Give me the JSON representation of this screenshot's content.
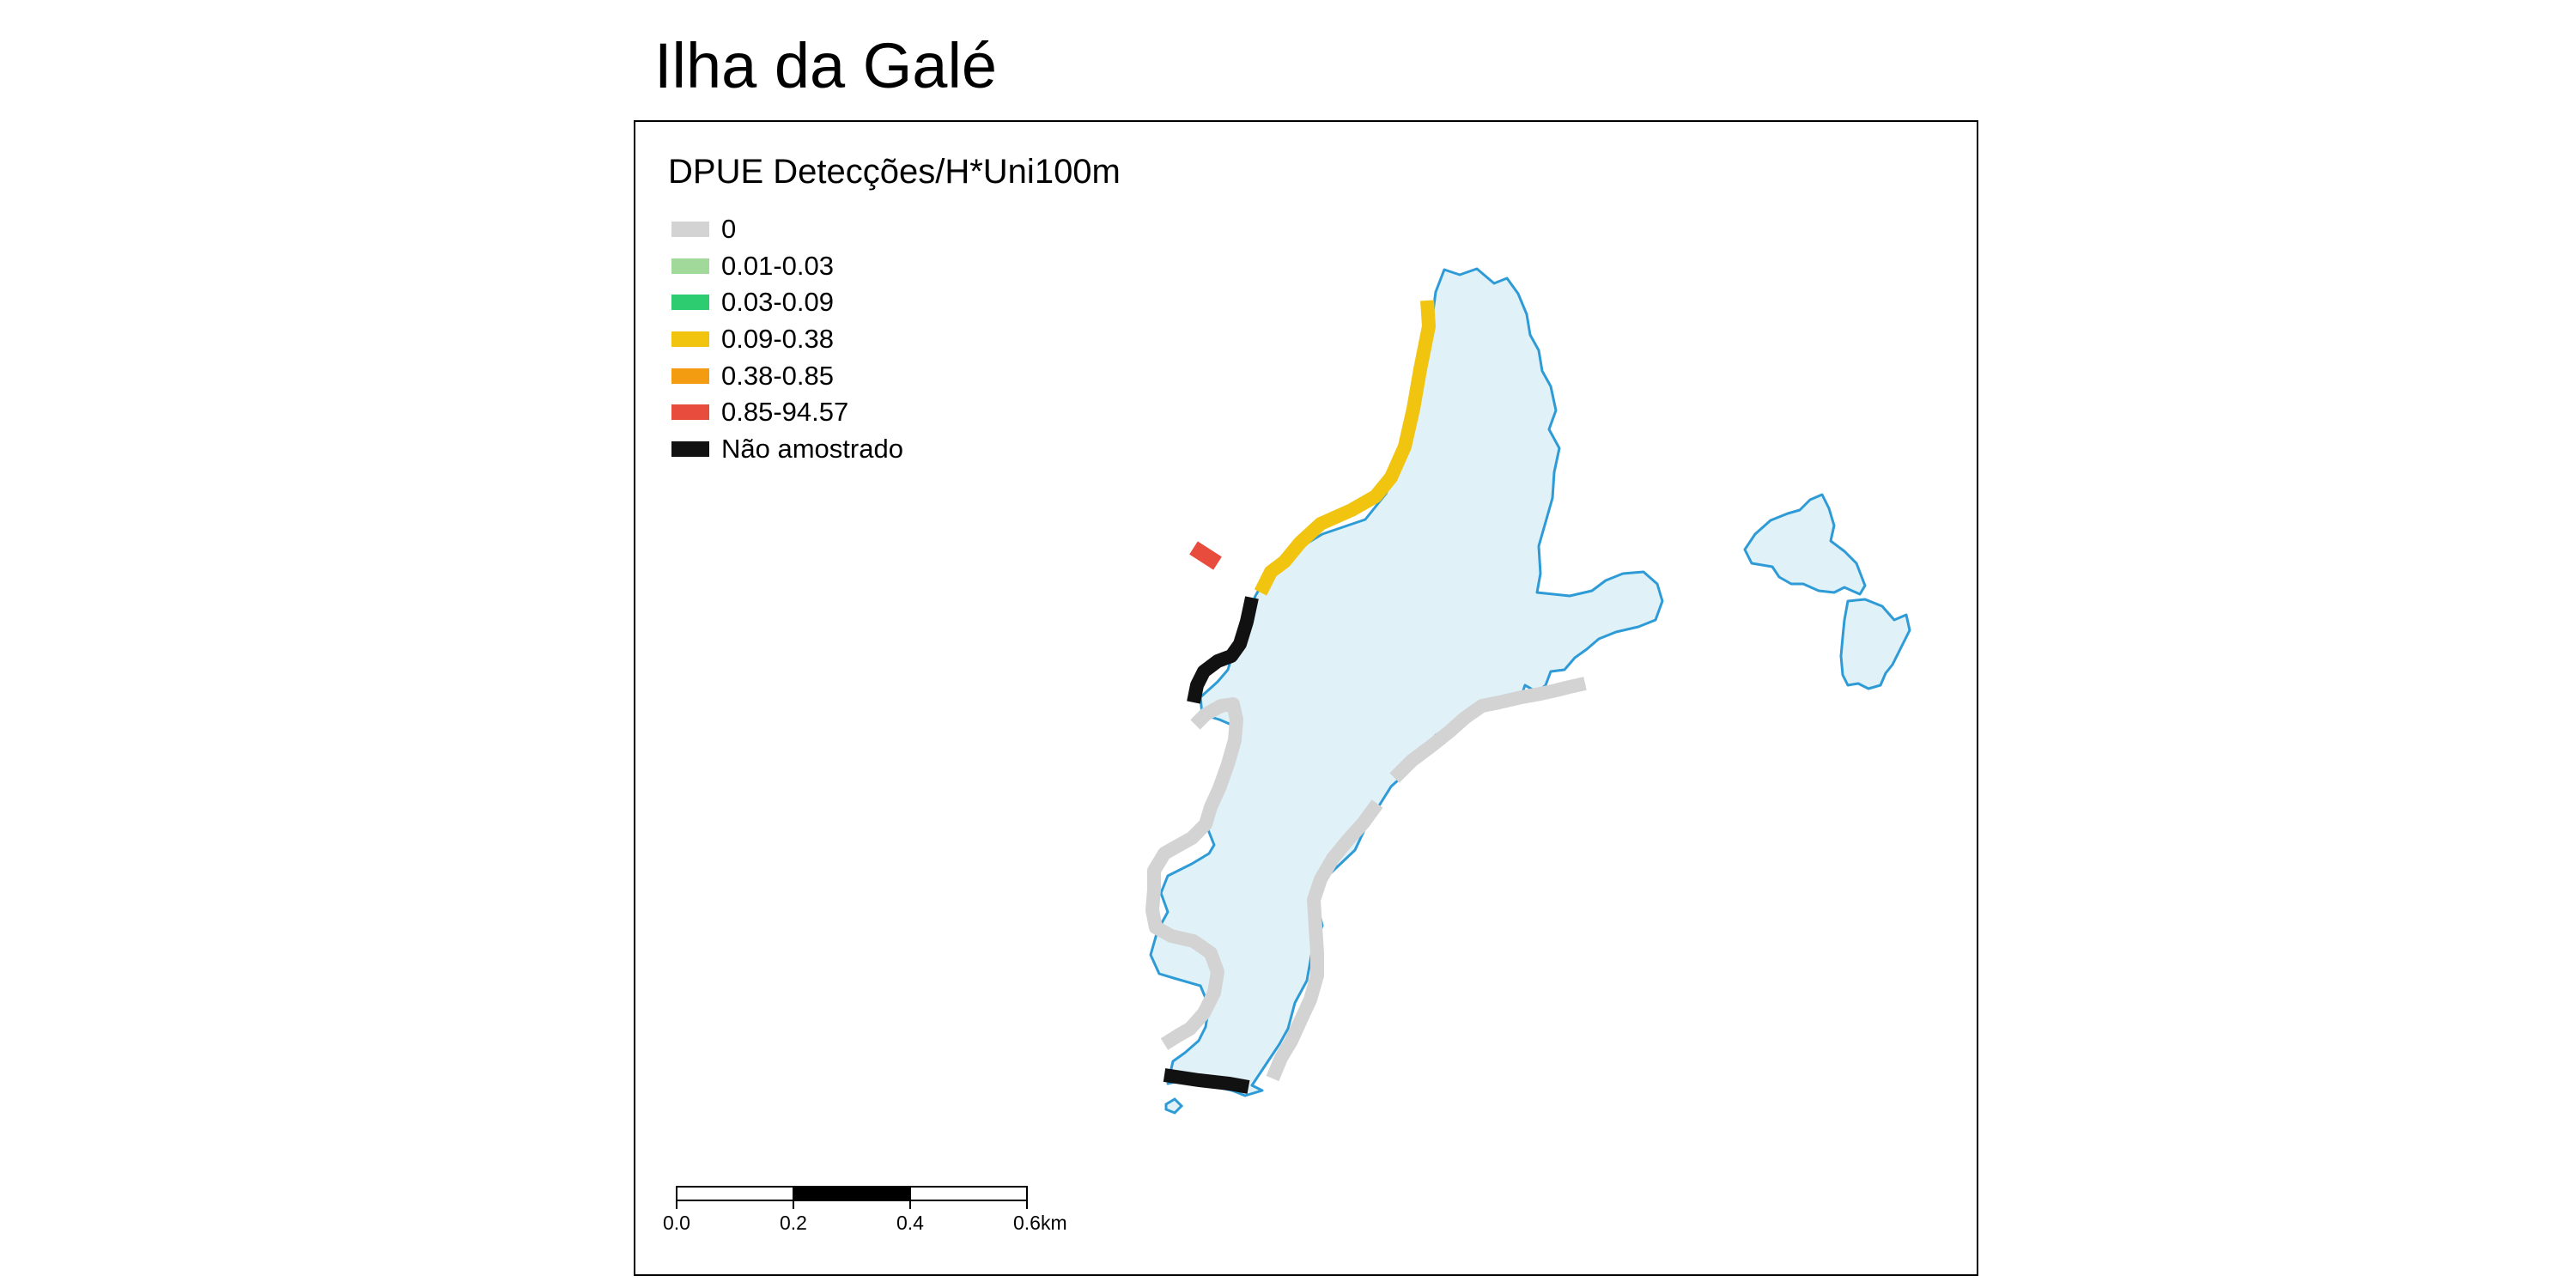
{
  "map": {
    "title": "Ilha da Galé",
    "legend": {
      "title": "DPUE Detecções/H*Uni100m",
      "items": [
        {
          "label": "0",
          "color": "#d3d3d3"
        },
        {
          "label": "0.01-0.03",
          "color": "#a1d99b"
        },
        {
          "label": "0.03-0.09",
          "color": "#2ecc71"
        },
        {
          "label": "0.09-0.38",
          "color": "#f1c40f"
        },
        {
          "label": "0.38-0.85",
          "color": "#f39c12"
        },
        {
          "label": "0.85-94.57",
          "color": "#e74c3c"
        },
        {
          "label": "Não amostrado",
          "color": "#111111"
        }
      ]
    },
    "scale_bar": {
      "ticks": [
        "0.0",
        "0.2",
        "0.4",
        "0.6"
      ],
      "unit": "km"
    },
    "colors": {
      "land_fill": "#e0f2f8",
      "coastline": "#2e9bd6"
    }
  }
}
